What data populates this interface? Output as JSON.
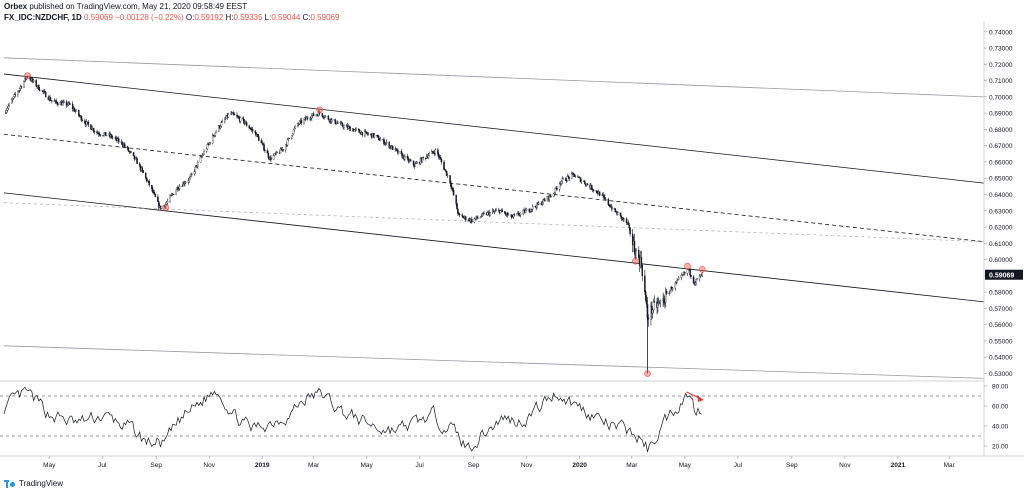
{
  "header": {
    "publisher": "Orbex",
    "published_text": " published on TradingView.com, May 21, 2020 09:58:49 EEST",
    "symbol": "FX_IDC:NZDCHF, 1D",
    "last": "0.59069",
    "change": "−0.00128 (−0.22%)",
    "o_label": "O:",
    "o_value": "0.59192",
    "h_label": "H:",
    "h_value": "0.59335",
    "l_label": "L:",
    "l_value": "0.59044",
    "c_label": "C:",
    "c_value": "0.59069"
  },
  "footer": {
    "brand": "TradingView"
  },
  "chart_data": [
    {
      "type": "candlestick",
      "price_axis": {
        "ticks": [
          "0.74000",
          "0.73000",
          "0.72000",
          "0.71000",
          "0.70000",
          "0.69000",
          "0.68000",
          "0.67000",
          "0.66000",
          "0.65000",
          "0.64000",
          "0.63000",
          "0.62000",
          "0.61000",
          "0.60000",
          "0.59000",
          "0.58000",
          "0.57000",
          "0.56000",
          "0.55000",
          "0.54000",
          "0.53000"
        ],
        "range": [
          0.526,
          0.746
        ],
        "last_price_label": "0.59069"
      },
      "time_axis": {
        "labels": [
          "May",
          "Jul",
          "Sep",
          "Nov",
          "2019",
          "Mar",
          "May",
          "Jul",
          "Sep",
          "Nov",
          "2020",
          "Mar",
          "May",
          "Jul",
          "Sep",
          "Nov",
          "2021",
          "Mar"
        ],
        "range": [
          "2018-03-10",
          "2021-04-10"
        ]
      },
      "series": [
        {
          "name": "NZDCHF",
          "x": [
            "2018-03-10",
            "2018-04-06",
            "2018-04-20",
            "2018-05-05",
            "2018-05-25",
            "2018-06-10",
            "2018-06-25",
            "2018-07-10",
            "2018-07-25",
            "2018-08-10",
            "2018-08-25",
            "2018-09-05",
            "2018-09-12",
            "2018-09-25",
            "2018-10-10",
            "2018-10-25",
            "2018-11-10",
            "2018-11-25",
            "2018-12-10",
            "2018-12-25",
            "2019-01-10",
            "2019-01-25",
            "2019-02-10",
            "2019-02-25",
            "2019-03-08",
            "2019-03-20",
            "2019-04-05",
            "2019-04-25",
            "2019-05-10",
            "2019-05-25",
            "2019-06-10",
            "2019-06-25",
            "2019-07-10",
            "2019-07-20",
            "2019-08-05",
            "2019-08-15",
            "2019-08-30",
            "2019-09-15",
            "2019-10-01",
            "2019-10-15",
            "2019-11-01",
            "2019-11-15",
            "2019-12-01",
            "2019-12-10",
            "2019-12-25",
            "2020-01-10",
            "2020-01-25",
            "2020-02-10",
            "2020-02-25",
            "2020-03-05",
            "2020-03-12",
            "2020-03-19",
            "2020-03-25",
            "2020-04-05",
            "2020-04-15",
            "2020-04-25",
            "2020-05-05",
            "2020-05-12",
            "2020-05-21"
          ],
          "close": [
            0.69,
            0.713,
            0.705,
            0.697,
            0.695,
            0.685,
            0.678,
            0.676,
            0.671,
            0.66,
            0.645,
            0.632,
            0.634,
            0.644,
            0.65,
            0.665,
            0.68,
            0.69,
            0.685,
            0.677,
            0.662,
            0.668,
            0.683,
            0.688,
            0.69,
            0.686,
            0.682,
            0.678,
            0.676,
            0.671,
            0.664,
            0.658,
            0.664,
            0.667,
            0.648,
            0.627,
            0.624,
            0.628,
            0.63,
            0.626,
            0.63,
            0.634,
            0.64,
            0.648,
            0.652,
            0.646,
            0.64,
            0.63,
            0.622,
            0.605,
            0.598,
            0.565,
            0.57,
            0.574,
            0.582,
            0.588,
            0.594,
            0.586,
            0.59069
          ]
        }
      ],
      "annotations": {
        "channel_upper": [
          [
            "2018-03-10",
            0.714
          ],
          [
            "2021-04-10",
            0.647
          ]
        ],
        "channel_lower": [
          [
            "2018-03-10",
            0.641
          ],
          [
            "2021-04-10",
            0.574
          ]
        ],
        "channel_mid_dashed": [
          [
            "2018-03-10",
            0.677
          ],
          [
            "2021-04-10",
            0.611
          ]
        ],
        "outer_upper": [
          [
            "2018-03-10",
            0.724
          ],
          [
            "2021-04-10",
            0.7
          ]
        ],
        "outer_lower": [
          [
            "2018-03-10",
            0.547
          ],
          [
            "2021-04-10",
            0.527
          ]
        ],
        "light_dashed": [
          [
            "2018-03-10",
            0.635
          ],
          [
            "2021-04-10",
            0.611
          ]
        ],
        "touch_markers": [
          [
            "2018-04-06",
            0.713
          ],
          [
            "2018-09-12",
            0.632
          ],
          [
            "2019-03-08",
            0.692
          ],
          [
            "2020-03-05",
            0.599
          ],
          [
            "2020-03-19",
            0.53
          ],
          [
            "2020-05-04",
            0.596
          ],
          [
            "2020-05-21",
            0.594
          ]
        ]
      }
    },
    {
      "type": "line",
      "indicator_axis": {
        "ticks": [
          "80.00",
          "60.00",
          "40.00",
          "20.00"
        ],
        "range": [
          10,
          85
        ]
      },
      "levels": [
        70,
        30
      ],
      "series": [
        {
          "x": [
            "2018-03-10",
            "2018-04-05",
            "2018-05-01",
            "2018-06-01",
            "2018-07-01",
            "2018-08-01",
            "2018-08-20",
            "2018-09-10",
            "2018-10-01",
            "2018-10-20",
            "2018-11-10",
            "2018-12-01",
            "2018-12-20",
            "2019-01-10",
            "2019-02-01",
            "2019-02-20",
            "2019-03-10",
            "2019-04-01",
            "2019-04-25",
            "2019-05-15",
            "2019-06-05",
            "2019-06-25",
            "2019-07-15",
            "2019-08-05",
            "2019-08-25",
            "2019-09-15",
            "2019-10-05",
            "2019-10-25",
            "2019-11-15",
            "2019-12-05",
            "2019-12-25",
            "2020-01-15",
            "2020-02-05",
            "2020-02-25",
            "2020-03-10",
            "2020-03-20",
            "2020-04-05",
            "2020-04-25",
            "2020-05-05",
            "2020-05-12",
            "2020-05-21"
          ],
          "y": [
            58,
            72,
            52,
            42,
            50,
            38,
            24,
            22,
            48,
            62,
            78,
            50,
            36,
            44,
            52,
            68,
            72,
            55,
            45,
            38,
            36,
            42,
            50,
            40,
            18,
            35,
            48,
            45,
            58,
            74,
            62,
            52,
            40,
            35,
            28,
            16,
            42,
            64,
            74,
            56,
            60
          ]
        }
      ],
      "divergence_arrow": [
        [
          "2020-05-03",
          74
        ],
        [
          "2020-05-22",
          66
        ]
      ]
    }
  ]
}
